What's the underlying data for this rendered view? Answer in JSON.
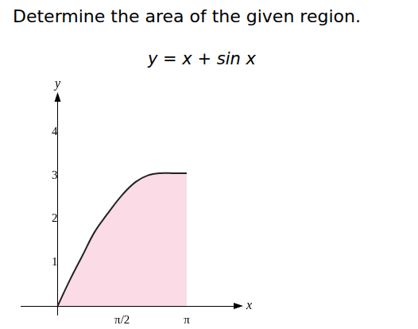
{
  "chart_data": {
    "type": "line",
    "title": "Determine the area of the given region.",
    "subtitle": "y = x + sin x",
    "xlabel": "x",
    "ylabel": "y",
    "x": [
      0,
      0.3,
      0.6,
      0.9,
      1.2,
      1.5708,
      1.9,
      2.2,
      2.5,
      2.8,
      3.1416
    ],
    "values": [
      0,
      0.6,
      1.15,
      1.7,
      2.1,
      2.55,
      2.85,
      3.0,
      3.05,
      3.05,
      3.05
    ],
    "color": "#222222",
    "xlim": [
      -0.9,
      4.4
    ],
    "ylim": [
      -0.2,
      4.8
    ],
    "xticks": [
      {
        "value": 1.5708,
        "label": "π/2"
      },
      {
        "value": 3.1416,
        "label": "π"
      }
    ],
    "yticks": [
      1,
      2,
      3,
      4
    ],
    "grid": false
  }
}
